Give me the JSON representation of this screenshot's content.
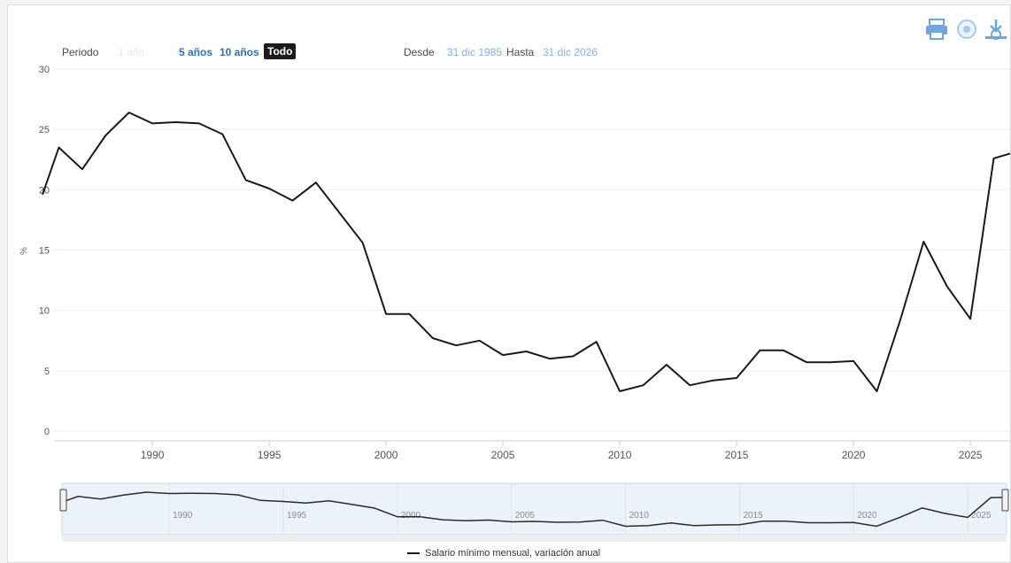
{
  "toolbar": {
    "period_label": "Periodo",
    "range_buttons": [
      {
        "label": "1 año",
        "state": "faded"
      },
      {
        "label": "5 años",
        "state": "link"
      },
      {
        "label": "10 años",
        "state": "link"
      },
      {
        "label": "Todo",
        "state": "active"
      }
    ],
    "from_label": "Desde",
    "from_value": "31 dic 1985",
    "to_label": "Hasta",
    "to_value": "31 dic 2026"
  },
  "icons": [
    "print-icon",
    "image-icon",
    "download-icon"
  ],
  "colors": {
    "line": "#1a1a1a",
    "grid": "#eeeeee",
    "tick_text": "#555555",
    "accent": "#2a6fc2",
    "navigator_fill": "#dbe8f5"
  },
  "chart_data": {
    "type": "line",
    "title": "",
    "xlabel": "",
    "ylabel": "%",
    "xlim": [
      1985.3,
      2026.7
    ],
    "ylim": [
      0,
      30
    ],
    "y_ticks": [
      0,
      5,
      10,
      15,
      20,
      25,
      30
    ],
    "x_ticks": [
      1990,
      1995,
      2000,
      2005,
      2010,
      2015,
      2020,
      2025
    ],
    "grid": true,
    "legend_position": "bottom-center",
    "series": [
      {
        "name": "Salario mínimo mensual, variación anual",
        "x": [
          1985,
          1986,
          1987,
          1988,
          1989,
          1990,
          1991,
          1992,
          1993,
          1994,
          1995,
          1996,
          1997,
          1998,
          1999,
          2000,
          2001,
          2002,
          2003,
          2004,
          2005,
          2006,
          2007,
          2008,
          2009,
          2010,
          2011,
          2012,
          2013,
          2014,
          2015,
          2016,
          2017,
          2018,
          2019,
          2020,
          2021,
          2022,
          2023,
          2024,
          2025,
          2026,
          2027
        ],
        "values": [
          19.6,
          23.5,
          21.7,
          24.5,
          26.4,
          25.5,
          25.6,
          25.5,
          24.6,
          20.8,
          20.1,
          19.1,
          20.6,
          18.1,
          15.6,
          9.7,
          9.7,
          7.7,
          7.1,
          7.5,
          6.3,
          6.6,
          6.0,
          6.2,
          7.4,
          3.3,
          3.8,
          5.5,
          3.8,
          4.2,
          4.4,
          6.7,
          6.7,
          5.7,
          5.7,
          5.8,
          3.3,
          9.2,
          15.7,
          12.0,
          9.3,
          22.6,
          23.0
        ]
      }
    ]
  }
}
